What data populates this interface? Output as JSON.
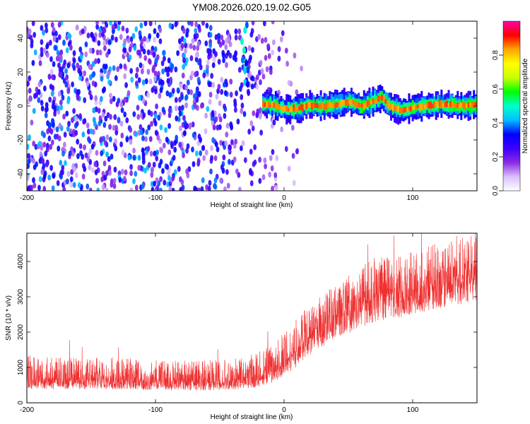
{
  "title": "YM08.2026.020.19.02.G05",
  "chart_data": [
    {
      "type": "heatmap",
      "title": "YM08.2026.020.19.02.G05",
      "xlabel": "Height of straight line (km)",
      "ylabel": "Frequency (Hz)",
      "xlim": [
        -200,
        150
      ],
      "ylim": [
        -50,
        50
      ],
      "xticks": [
        -200,
        -100,
        0,
        100
      ],
      "yticks": [
        -40,
        -20,
        0,
        20,
        40
      ],
      "colorbar": {
        "label": "Normalized spectral amplitude",
        "range": [
          0.0,
          1.0
        ],
        "ticks": [
          "0.0",
          "0.2",
          "0.4",
          "0.6",
          "0.8"
        ],
        "tick_values": [
          0.0,
          0.2,
          0.4,
          0.6,
          0.8
        ],
        "colormap": [
          "#ffffff",
          "#d9bfff",
          "#8a2be2",
          "#3c00ff",
          "#0000ff",
          "#00bfff",
          "#00ffcc",
          "#00ff00",
          "#c8ff00",
          "#ffff00",
          "#ffa500",
          "#ff0000",
          "#ff00aa"
        ]
      },
      "description_values": {
        "noise_region_x": [
          -200,
          -20
        ],
        "noise_amplitude": 0.35,
        "signal_start_x": -20,
        "signal_frequency_hz": 0.5,
        "signal_amplitude": 0.9,
        "signal_track": {
          "x": [
            -20,
            -10,
            0,
            10,
            20,
            30,
            40,
            50,
            60,
            70,
            75,
            80,
            90,
            100,
            110,
            120,
            130,
            140,
            150
          ],
          "y": [
            1.5,
            0.8,
            -2.0,
            -1.5,
            0.5,
            0.0,
            1.0,
            2.5,
            0.0,
            3.0,
            5.0,
            1.0,
            -2.5,
            -1.0,
            0.0,
            1.0,
            0.5,
            0.0,
            0.5
          ]
        }
      }
    },
    {
      "type": "line",
      "xlabel": "Height of straight line (km)",
      "ylabel": "SNR (10 * v/v)",
      "xlim": [
        -200,
        150
      ],
      "ylim": [
        0,
        4800
      ],
      "xticks": [
        -200,
        -100,
        0,
        100
      ],
      "yticks": [
        0,
        1000,
        2000,
        3000,
        4000
      ],
      "series": [
        {
          "color": "#f03030",
          "x": [
            -200,
            -180,
            -160,
            -140,
            -120,
            -100,
            -80,
            -60,
            -40,
            -30,
            -20,
            -10,
            0,
            10,
            20,
            30,
            40,
            50,
            60,
            70,
            80,
            90,
            100,
            110,
            120,
            130,
            140,
            150
          ],
          "y": [
            650,
            640,
            630,
            640,
            620,
            610,
            600,
            600,
            620,
            650,
            750,
            900,
            1150,
            1500,
            1900,
            2200,
            2450,
            2600,
            2800,
            3000,
            3050,
            3100,
            3200,
            3300,
            3400,
            3550,
            3600,
            3700
          ],
          "spread_lower": [
            250,
            250,
            250,
            250,
            250,
            250,
            250,
            250,
            250,
            250,
            300,
            350,
            400,
            500,
            550,
            600,
            600,
            650,
            700,
            700,
            700,
            700,
            700,
            750,
            750,
            800,
            800,
            800
          ],
          "spread_upper": [
            700,
            650,
            650,
            650,
            650,
            600,
            600,
            600,
            650,
            650,
            700,
            800,
            900,
            900,
            900,
            900,
            900,
            1000,
            1100,
            1100,
            1100,
            1100,
            1100,
            1100,
            1150,
            1150,
            1200,
            1150
          ]
        }
      ]
    }
  ]
}
